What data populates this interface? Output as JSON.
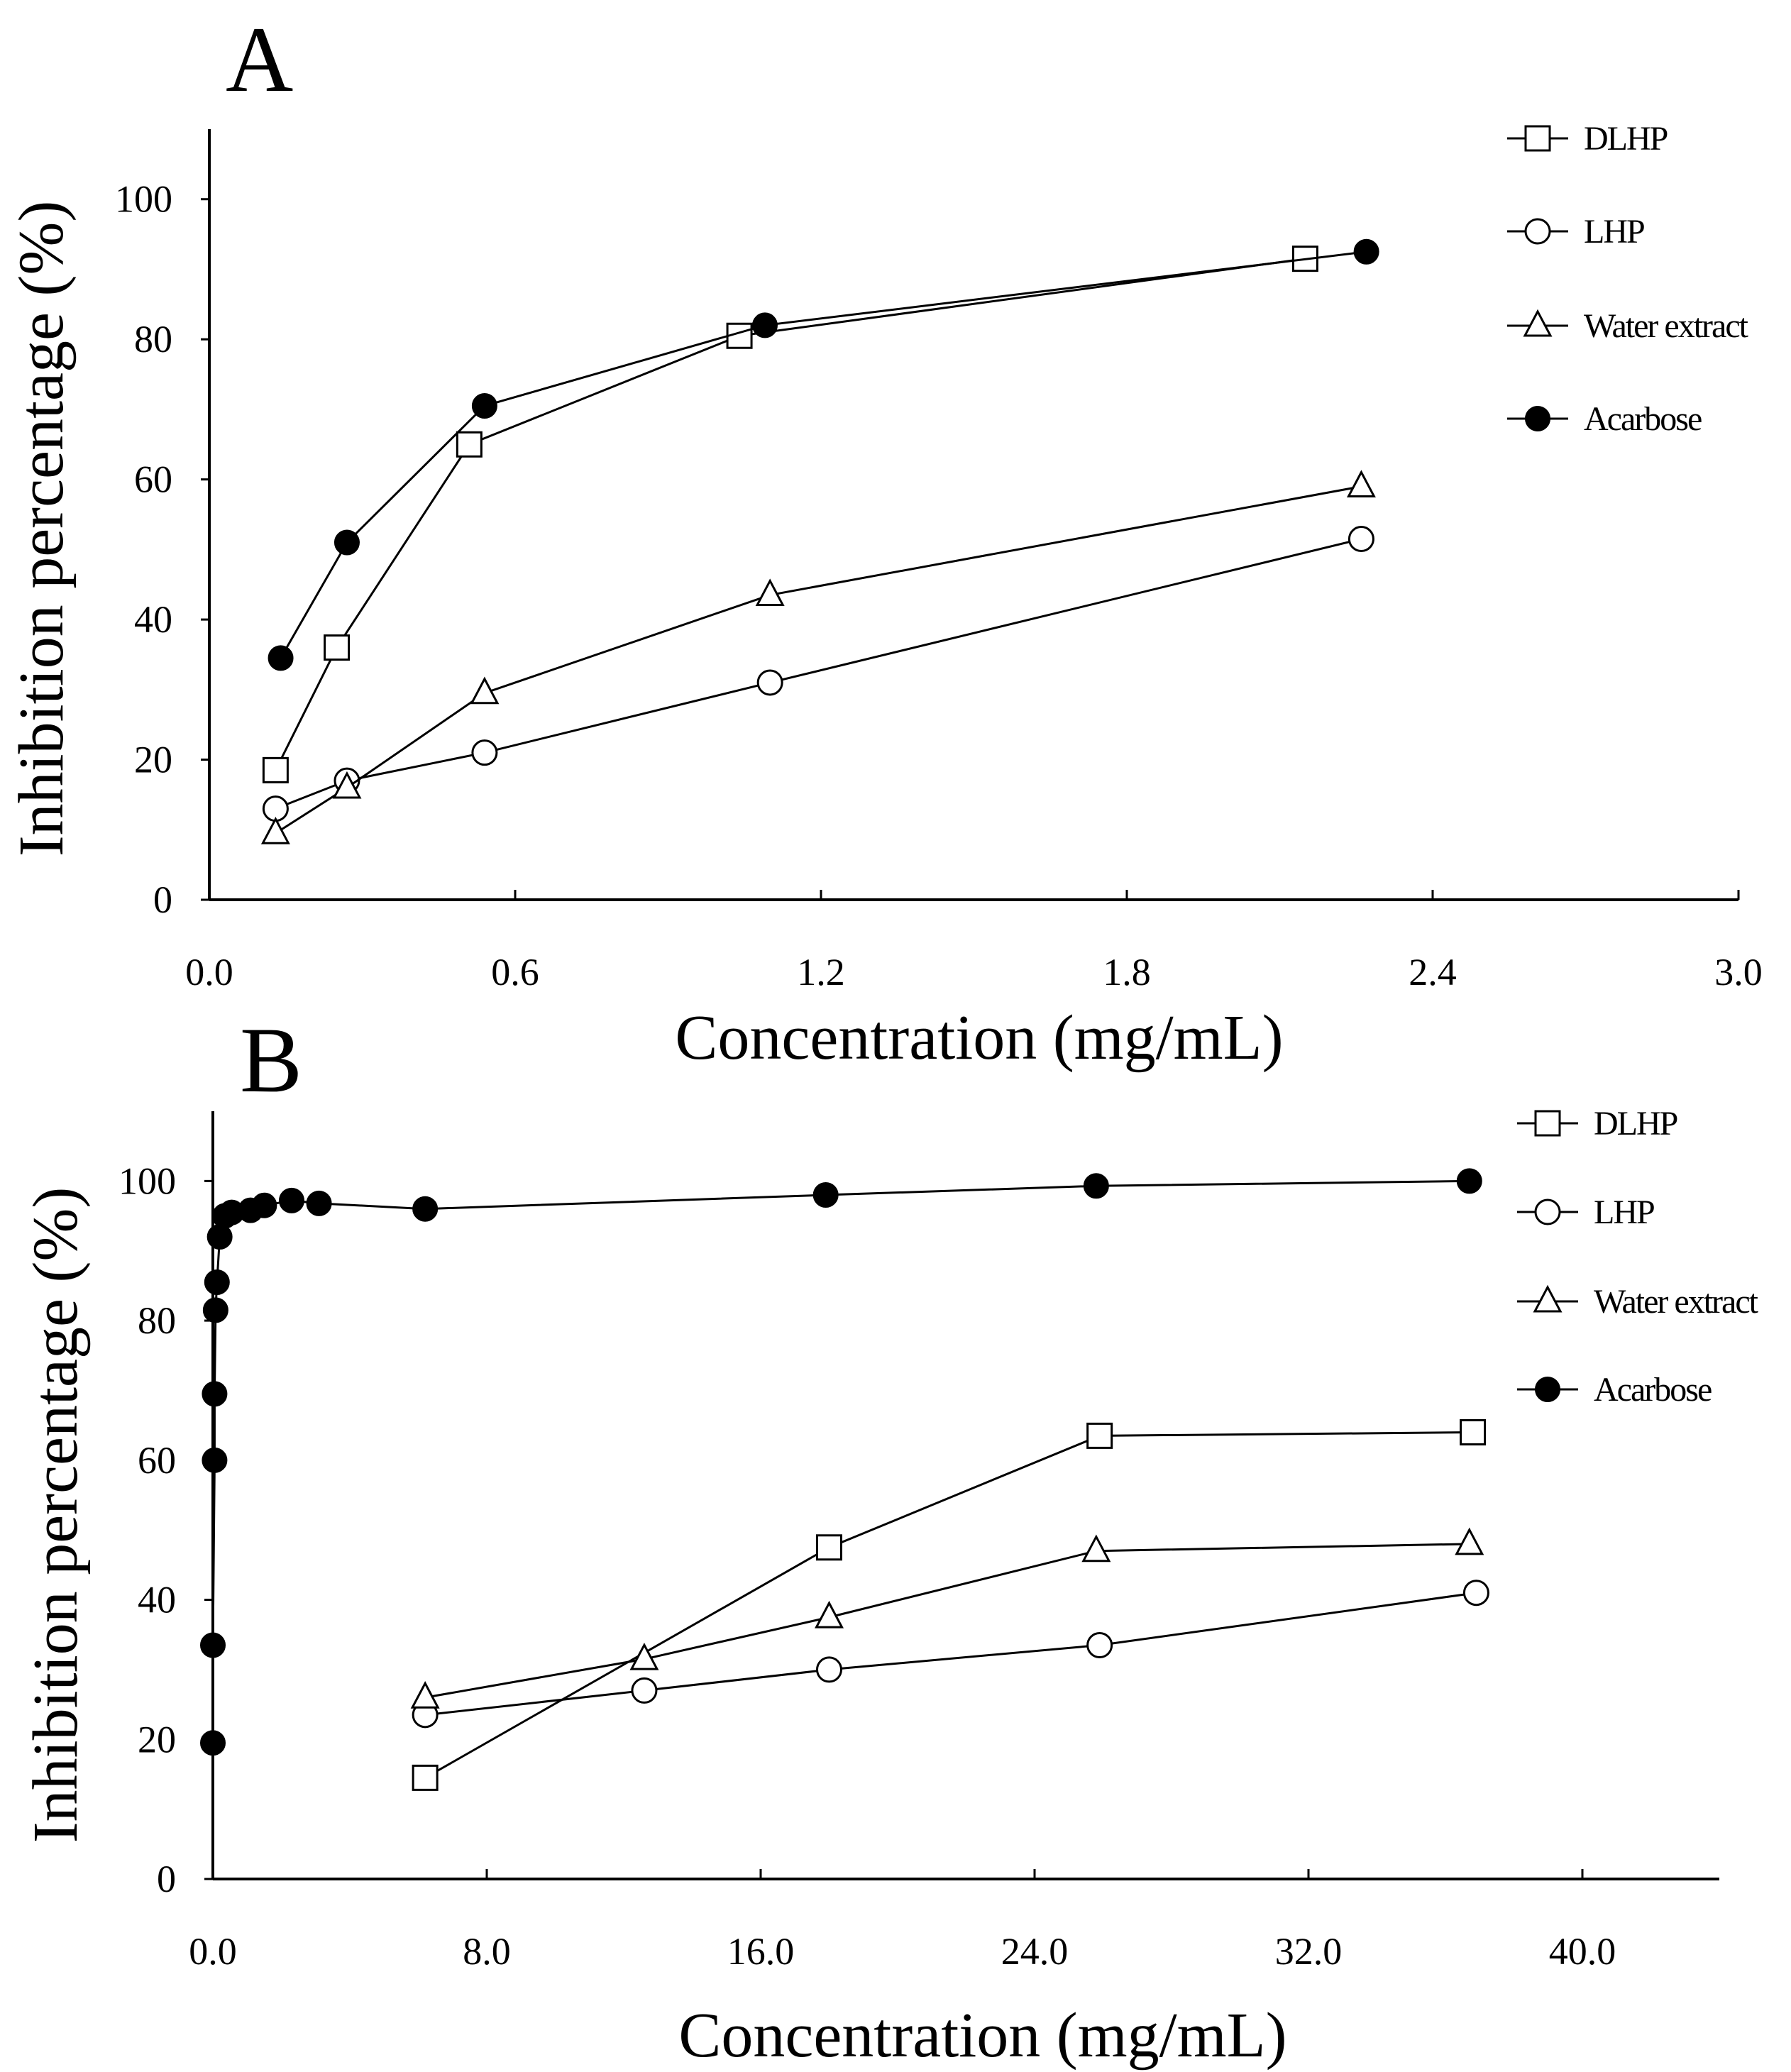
{
  "chart_data": [
    {
      "panel": "A",
      "type": "line",
      "xlabel": "Concentration (mg/mL)",
      "ylabel": "Inhibition percentage (%)",
      "xlim": [
        0,
        3.0
      ],
      "ylim": [
        0,
        110
      ],
      "xticks": [
        0,
        0.6,
        1.2,
        1.8,
        2.4,
        3.0
      ],
      "xtick_labels": [
        "0.0",
        "0.6",
        "1.2",
        "1.8",
        "2.4",
        "3.0"
      ],
      "yticks": [
        0,
        20,
        40,
        60,
        80,
        100
      ],
      "ytick_labels": [
        "0",
        "20",
        "40",
        "60",
        "80",
        "100"
      ],
      "legend_position": "top-right",
      "series": [
        {
          "name": "DLHP",
          "marker": "square-open",
          "x": [
            0.13,
            0.25,
            0.51,
            1.04,
            2.15
          ],
          "y": [
            18.5,
            36,
            65,
            80.5,
            91.5
          ]
        },
        {
          "name": "LHP",
          "marker": "circle-open",
          "x": [
            0.13,
            0.27,
            0.54,
            1.1,
            2.26
          ],
          "y": [
            13,
            17,
            21,
            31,
            51.5
          ]
        },
        {
          "name": "Water extract",
          "marker": "triangle-open",
          "x": [
            0.13,
            0.27,
            0.54,
            1.1,
            2.26
          ],
          "y": [
            9.5,
            16,
            29.5,
            43.5,
            59
          ]
        },
        {
          "name": "Acarbose",
          "marker": "circle-filled",
          "x": [
            0.14,
            0.27,
            0.54,
            1.09,
            2.27
          ],
          "y": [
            34.5,
            51,
            70.5,
            82,
            92.5
          ]
        }
      ]
    },
    {
      "panel": "B",
      "type": "line",
      "xlabel": "Concentration (mg/mL)",
      "ylabel": "Inhibition percentage (%)",
      "xlim": [
        0,
        44
      ],
      "ylim": [
        0,
        110
      ],
      "xticks": [
        0,
        8,
        16,
        24,
        32,
        40
      ],
      "xtick_labels": [
        "0.0",
        "8.0",
        "16.0",
        "24.0",
        "32.0",
        "40.0"
      ],
      "yticks": [
        0,
        20,
        40,
        60,
        80,
        100
      ],
      "ytick_labels": [
        "0",
        "20",
        "40",
        "60",
        "80",
        "100"
      ],
      "legend_position": "top-right",
      "series": [
        {
          "name": "DLHP",
          "marker": "square-open",
          "x": [
            6.2,
            18.0,
            25.9,
            36.8
          ],
          "y": [
            14.5,
            47.5,
            63.5,
            64
          ]
        },
        {
          "name": "LHP",
          "marker": "circle-open",
          "x": [
            6.2,
            12.6,
            18.0,
            25.9,
            36.9
          ],
          "y": [
            23.5,
            27,
            30,
            33.5,
            41
          ]
        },
        {
          "name": "Water extract",
          "marker": "triangle-open",
          "x": [
            6.2,
            12.6,
            18.0,
            25.8,
            36.7
          ],
          "y": [
            26,
            31.5,
            37.5,
            47,
            48
          ]
        },
        {
          "name": "Acarbose",
          "marker": "circle-filled",
          "x": [
            0.0,
            0.0,
            0.05,
            0.05,
            0.08,
            0.12,
            0.2,
            0.35,
            0.55,
            1.1,
            1.5,
            2.3,
            3.1,
            6.2,
            17.9,
            25.8,
            36.7
          ],
          "y": [
            19.5,
            33.5,
            60,
            69.5,
            81.5,
            85.5,
            92,
            95,
            95.5,
            95.8,
            96.5,
            97.2,
            96.8,
            96,
            98,
            99.3,
            100
          ]
        }
      ]
    }
  ]
}
